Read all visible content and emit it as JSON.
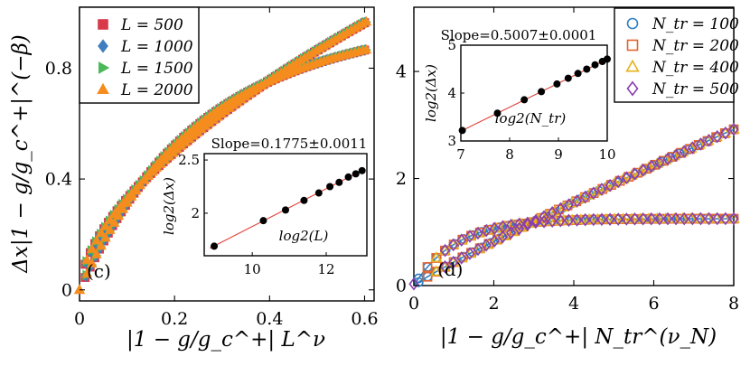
{
  "chart_data": [
    {
      "type": "scatter",
      "panel_label": "(c)",
      "xlabel": "|1 − g/g_c^+| L^ν",
      "ylabel": "Δx|1 − g/g_c^+|^(−β)",
      "xlim": [
        0,
        0.62
      ],
      "ylim": [
        -0.04,
        1.02
      ],
      "xticks": [
        "0",
        "0.2",
        "0.4",
        "0.6"
      ],
      "yticks": [
        "0",
        "0.4",
        "0.8"
      ],
      "legend": {
        "position": "top-left",
        "entries": [
          {
            "label": "L = 500",
            "marker": "square",
            "color": "#d93a49"
          },
          {
            "label": "L = 1000",
            "marker": "diamond",
            "color": "#3f7fbf"
          },
          {
            "label": "L = 1500",
            "marker": "triangle-right",
            "color": "#4cb85a"
          },
          {
            "label": "L = 2000",
            "marker": "triangle-up",
            "color": "#f58c1e"
          }
        ]
      },
      "series": [
        {
          "name": "upper branch",
          "formula": "y = 1.31 * x^0.6",
          "x_range": [
            0.0,
            0.6
          ]
        },
        {
          "name": "lower branch",
          "formula": "y = 0.85 * (1 - exp(-x/0.23)) + 0.13 * x",
          "x_range": [
            0.0,
            0.6
          ]
        }
      ],
      "inset": {
        "slope_text": "Slope=0.1775±0.0011",
        "xlabel": "log2(L)",
        "ylabel": "log2(Δx)",
        "xlim": [
          8.7,
          13.1
        ],
        "ylim": [
          1.6,
          2.56
        ],
        "xticks": [
          "10",
          "12"
        ],
        "yticks": [
          "2",
          "2.5"
        ],
        "line": {
          "slope": 0.1775,
          "intercept": 0.1,
          "color": "#e0413a"
        },
        "points": {
          "x": [
            8.97,
            10.3,
            10.9,
            11.4,
            11.8,
            12.1,
            12.35,
            12.6,
            12.8,
            12.97
          ],
          "y": [
            1.69,
            1.93,
            2.03,
            2.12,
            2.19,
            2.25,
            2.29,
            2.34,
            2.37,
            2.4
          ]
        }
      }
    },
    {
      "type": "scatter",
      "panel_label": "(d)",
      "xlabel": "|1 − g/g_c^+| N_tr^(ν_N)",
      "ylabel": "",
      "xlim": [
        0,
        8
      ],
      "ylim": [
        0,
        5.2
      ],
      "xticks": [
        "0",
        "2",
        "4",
        "6",
        "8"
      ],
      "yticks": [
        "0",
        "2",
        "4"
      ],
      "legend": {
        "position": "top-right",
        "entries": [
          {
            "label": "N_tr = 100",
            "marker": "circle",
            "color": "#2f7fc1"
          },
          {
            "label": "N_tr = 200",
            "marker": "square",
            "color": "#e4632d"
          },
          {
            "label": "N_tr = 400",
            "marker": "triangle-up",
            "color": "#e7b11c"
          },
          {
            "label": "N_tr = 500",
            "marker": "diamond",
            "color": "#8a3fb1"
          }
        ]
      },
      "series": [
        {
          "name": "upper branch",
          "formula": "y = 0.44 * x^0.91",
          "x_range": [
            0.0,
            8.0
          ]
        },
        {
          "name": "lower branch",
          "formula": "y = 1.25 * (1 - exp(-x/1.05))",
          "x_range": [
            0.0,
            8.0
          ]
        }
      ],
      "inset": {
        "slope_text": "Slope=0.5007±0.0001",
        "xlabel": "log2(N_tr)",
        "ylabel": "log2(Δx)",
        "xlim": [
          7,
          10
        ],
        "ylim": [
          3,
          5
        ],
        "xticks": [
          "7",
          "8",
          "9",
          "10"
        ],
        "yticks": [
          "3",
          "4",
          "5"
        ],
        "line": {
          "slope": 0.5007,
          "intercept": -0.3,
          "color": "#e0413a"
        },
        "points": {
          "x": [
            7.03,
            7.75,
            8.3,
            8.65,
            8.97,
            9.2,
            9.4,
            9.58,
            9.75,
            9.9,
            10.0
          ],
          "y": [
            3.22,
            3.58,
            3.86,
            4.03,
            4.19,
            4.31,
            4.41,
            4.5,
            4.59,
            4.66,
            4.71
          ]
        }
      }
    }
  ]
}
